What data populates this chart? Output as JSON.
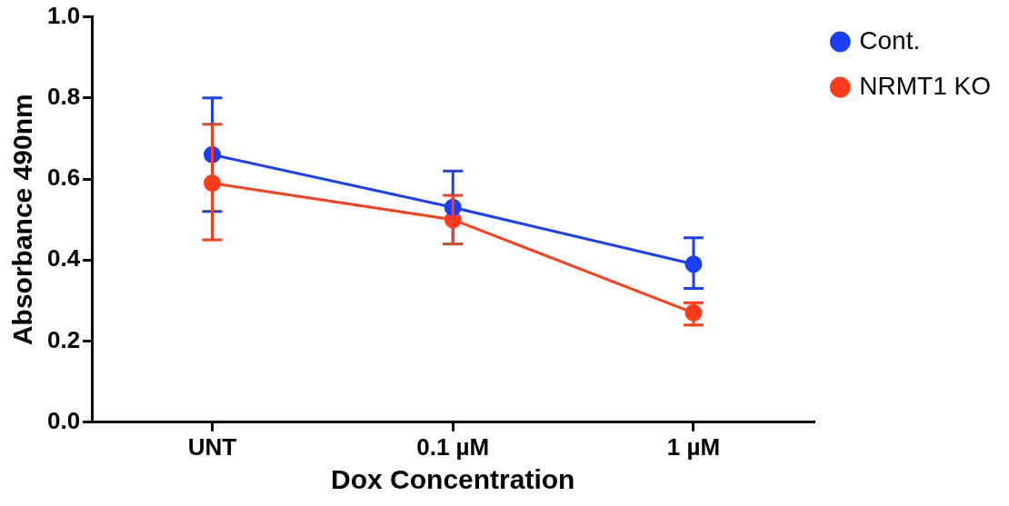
{
  "chart_data": {
    "type": "line",
    "xlabel": "Dox Concentration",
    "ylabel": "Absorbance 490nm",
    "categories": [
      "UNT",
      "0.1 µM",
      "1 µM"
    ],
    "series": [
      {
        "name": "Cont.",
        "color": "#1a3ff5",
        "values": [
          0.66,
          0.53,
          0.39
        ],
        "errors": [
          [
            0.52,
            0.8
          ],
          [
            0.44,
            0.62
          ],
          [
            0.33,
            0.455
          ]
        ]
      },
      {
        "name": "NRMT1 KO",
        "color": "#ff3b1a",
        "values": [
          0.59,
          0.5,
          0.27
        ],
        "errors": [
          [
            0.45,
            0.735
          ],
          [
            0.44,
            0.56
          ],
          [
            0.24,
            0.295
          ]
        ]
      }
    ],
    "ylim": [
      0,
      1
    ],
    "yticks": [
      {
        "value": 0,
        "label": "0.0"
      },
      0.2,
      0.4,
      0.6,
      0.8,
      {
        "value": 1,
        "label": "1.0"
      }
    ],
    "grid": false,
    "legend": "top right",
    "marker": "circle",
    "line_style": "solid"
  }
}
